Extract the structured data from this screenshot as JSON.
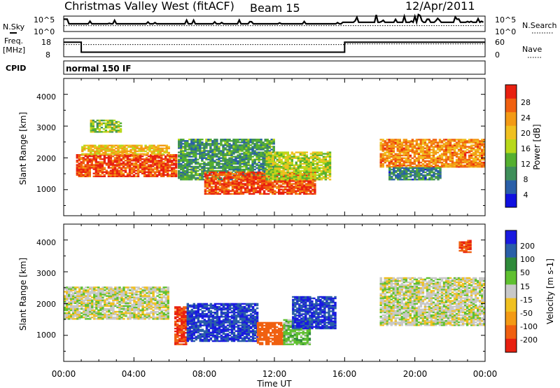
{
  "header": {
    "station": "Christmas Valley West (fitACF)",
    "beam": "Beam 15",
    "date": "12/Apr/2011"
  },
  "noise_panel": {
    "left_label": "N.Sky",
    "right_label": "N.Search",
    "left_ticks": [
      "10^5",
      "10^0"
    ],
    "right_ticks": [
      "10^5",
      "10^0"
    ]
  },
  "freq_panel": {
    "left_label_1": "Freq.",
    "left_label_2": "[MHz]",
    "right_label": "Nave",
    "left_ticks": [
      "18",
      "8"
    ],
    "right_ticks": [
      "60",
      "0"
    ],
    "freq_mhz": [
      {
        "start_h": 0,
        "end_h": 1,
        "value": 16
      },
      {
        "start_h": 1,
        "end_h": 16,
        "value": 10.5
      },
      {
        "start_h": 16,
        "end_h": 24,
        "value": 16
      }
    ],
    "nave": [
      {
        "start_h": 0,
        "end_h": 16,
        "value": 40
      },
      {
        "start_h": 16,
        "end_h": 24,
        "value": 42
      }
    ]
  },
  "cpid_panel": {
    "label": "CPID",
    "mode": "normal 150 IF"
  },
  "x_axis": {
    "label": "Time UT",
    "ticks": [
      "00:00",
      "04:00",
      "08:00",
      "12:00",
      "16:00",
      "20:00",
      "00:00"
    ]
  },
  "power_panel": {
    "ylabel": "Slant Range [km]",
    "yticks": [
      "1000",
      "2000",
      "3000",
      "4000"
    ],
    "colorbar_label": "Power [dB]",
    "colorbar_ticks": [
      "4",
      "8",
      "12",
      "16",
      "20",
      "24",
      "28"
    ],
    "colors": [
      "#1010e0",
      "#2a5fa8",
      "#3f8f5a",
      "#55b030",
      "#b8d81a",
      "#f0c020",
      "#f39a15",
      "#f06010",
      "#e82010"
    ]
  },
  "velocity_panel": {
    "ylabel": "Slant Range [km]",
    "yticks": [
      "1000",
      "2000",
      "3000",
      "4000"
    ],
    "colorbar_label": "Velocity [m s-1]",
    "colorbar_ticks": [
      "200",
      "100",
      "50",
      "15",
      "-15",
      "-50",
      "-100",
      "-200"
    ],
    "colors": [
      "#1a1ae0",
      "#2a5fa8",
      "#2f8a3a",
      "#5fc030",
      "#c8c8c8",
      "#f0c020",
      "#f39a15",
      "#f06010",
      "#e82010"
    ]
  },
  "chart_data": {
    "type": "heatmap",
    "xlabel": "Time UT",
    "ylabel": "Slant Range [km]",
    "xlim": [
      0,
      24
    ],
    "ylim": [
      180,
      4500
    ],
    "power_scale_db": [
      0,
      32
    ],
    "velocity_scale_ms": [
      -250,
      250
    ],
    "power_regions": [
      {
        "start_h": 0.7,
        "end_h": 6.4,
        "range_lo_km": 1400,
        "range_hi_km": 2100,
        "value_db": 28
      },
      {
        "start_h": 1.0,
        "end_h": 6.0,
        "range_lo_km": 2100,
        "range_hi_km": 2400,
        "value_db": 20
      },
      {
        "start_h": 1.5,
        "end_h": 3.3,
        "range_lo_km": 2800,
        "range_hi_km": 3200,
        "value_db": 14
      },
      {
        "start_h": 6.5,
        "end_h": 12.0,
        "range_lo_km": 1300,
        "range_hi_km": 2600,
        "value_db": 10
      },
      {
        "start_h": 8.0,
        "end_h": 14.3,
        "range_lo_km": 850,
        "range_hi_km": 1550,
        "value_db": 28
      },
      {
        "start_h": 11.5,
        "end_h": 15.2,
        "range_lo_km": 1300,
        "range_hi_km": 2200,
        "value_db": 16
      },
      {
        "start_h": 18.0,
        "end_h": 24.0,
        "range_lo_km": 1700,
        "range_hi_km": 2600,
        "value_db": 24
      },
      {
        "start_h": 18.5,
        "end_h": 21.5,
        "range_lo_km": 1300,
        "range_hi_km": 1700,
        "value_db": 8
      }
    ],
    "velocity_regions": [
      {
        "start_h": 0.0,
        "end_h": 6.0,
        "range_lo_km": 1500,
        "range_hi_km": 2500,
        "value_ms": 0
      },
      {
        "start_h": 6.3,
        "end_h": 7.0,
        "range_lo_km": 700,
        "range_hi_km": 1900,
        "value_ms": -200
      },
      {
        "start_h": 7.0,
        "end_h": 11.0,
        "range_lo_km": 800,
        "range_hi_km": 2000,
        "value_ms": 200
      },
      {
        "start_h": 11.0,
        "end_h": 12.5,
        "range_lo_km": 700,
        "range_hi_km": 1400,
        "value_ms": -150
      },
      {
        "start_h": 12.5,
        "end_h": 14.0,
        "range_lo_km": 700,
        "range_hi_km": 1500,
        "value_ms": 30
      },
      {
        "start_h": 13.0,
        "end_h": 15.5,
        "range_lo_km": 1200,
        "range_hi_km": 2200,
        "value_ms": 200
      },
      {
        "start_h": 18.0,
        "end_h": 24.0,
        "range_lo_km": 1300,
        "range_hi_km": 2800,
        "value_ms": 0
      },
      {
        "start_h": 22.5,
        "end_h": 23.2,
        "range_lo_km": 3600,
        "range_hi_km": 4000,
        "value_ms": -200
      }
    ]
  }
}
